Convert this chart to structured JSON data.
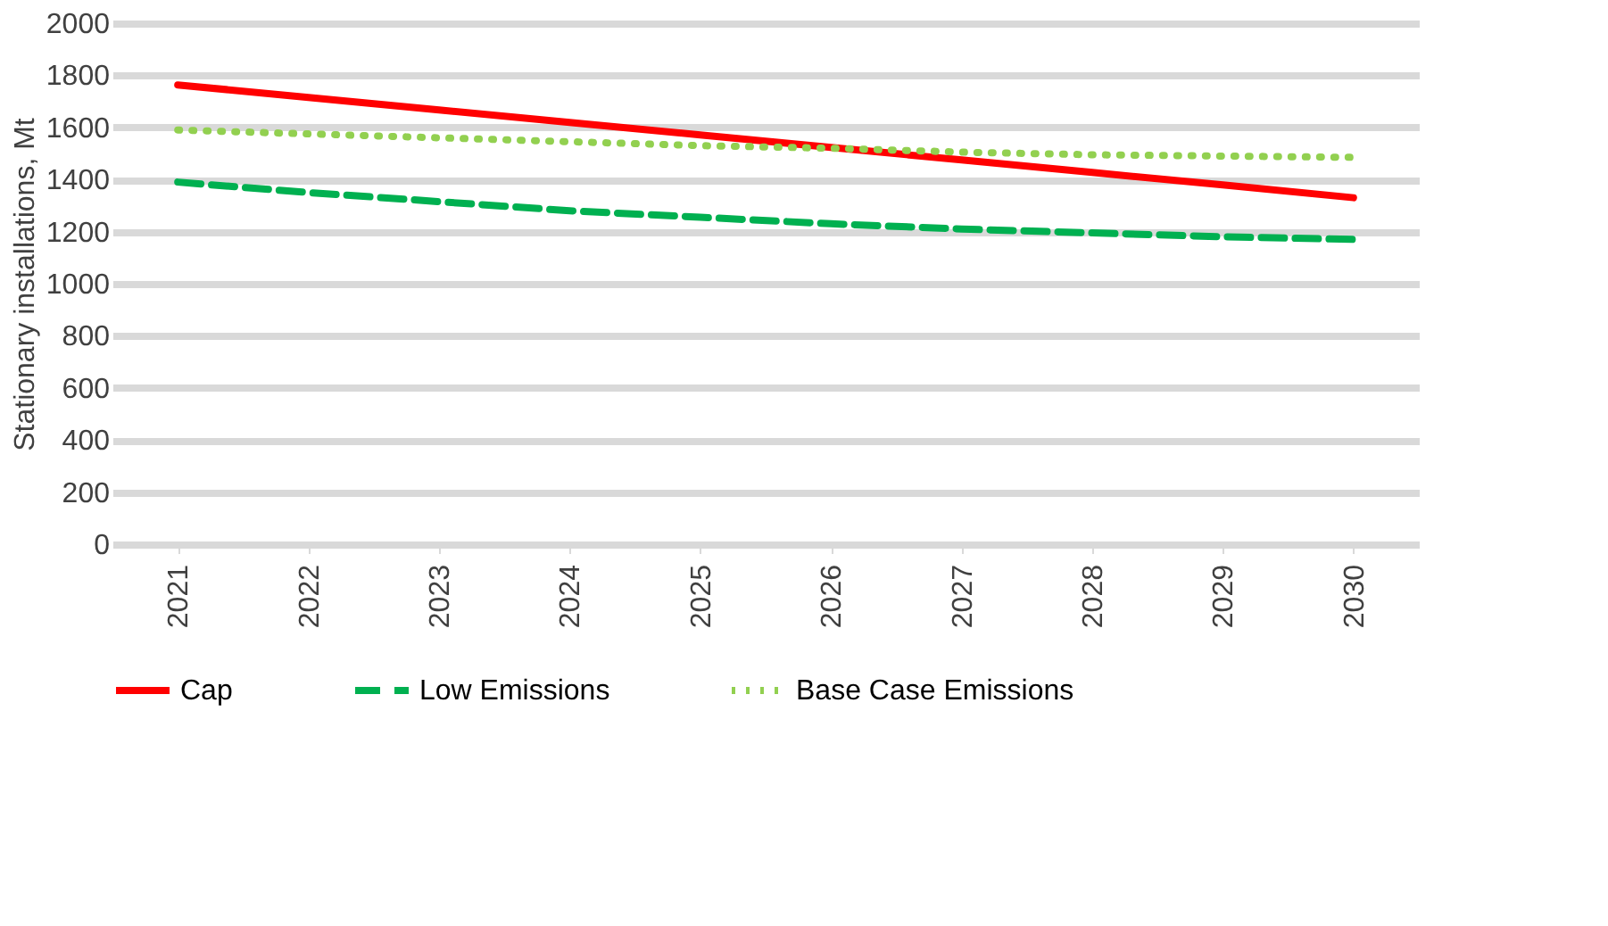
{
  "chart_data": {
    "type": "line",
    "ylabel": "Stationary installations, Mt",
    "categories": [
      "2021",
      "2022",
      "2023",
      "2024",
      "2025",
      "2026",
      "2027",
      "2028",
      "2029",
      "2030"
    ],
    "ylim": [
      0,
      2000
    ],
    "yticks": [
      0,
      200,
      400,
      600,
      800,
      1000,
      1200,
      1400,
      1600,
      1800,
      2000
    ],
    "grid": "y",
    "legend": "bottom",
    "marker": "none",
    "series": [
      {
        "name": "Cap",
        "color": "#ff0000",
        "line_style": "solid",
        "values": [
          1763,
          1715,
          1667,
          1619,
          1571,
          1523,
          1475,
          1427,
          1379,
          1330
        ]
      },
      {
        "name": "Low Emissions",
        "color": "#00b050",
        "line_style": "dashed",
        "values": [
          1390,
          1350,
          1315,
          1280,
          1255,
          1230,
          1210,
          1195,
          1180,
          1170
        ]
      },
      {
        "name": "Base Case Emissions",
        "color": "#92d050",
        "line_style": "dotted",
        "values": [
          1590,
          1575,
          1560,
          1545,
          1530,
          1520,
          1505,
          1495,
          1490,
          1485
        ]
      }
    ]
  }
}
